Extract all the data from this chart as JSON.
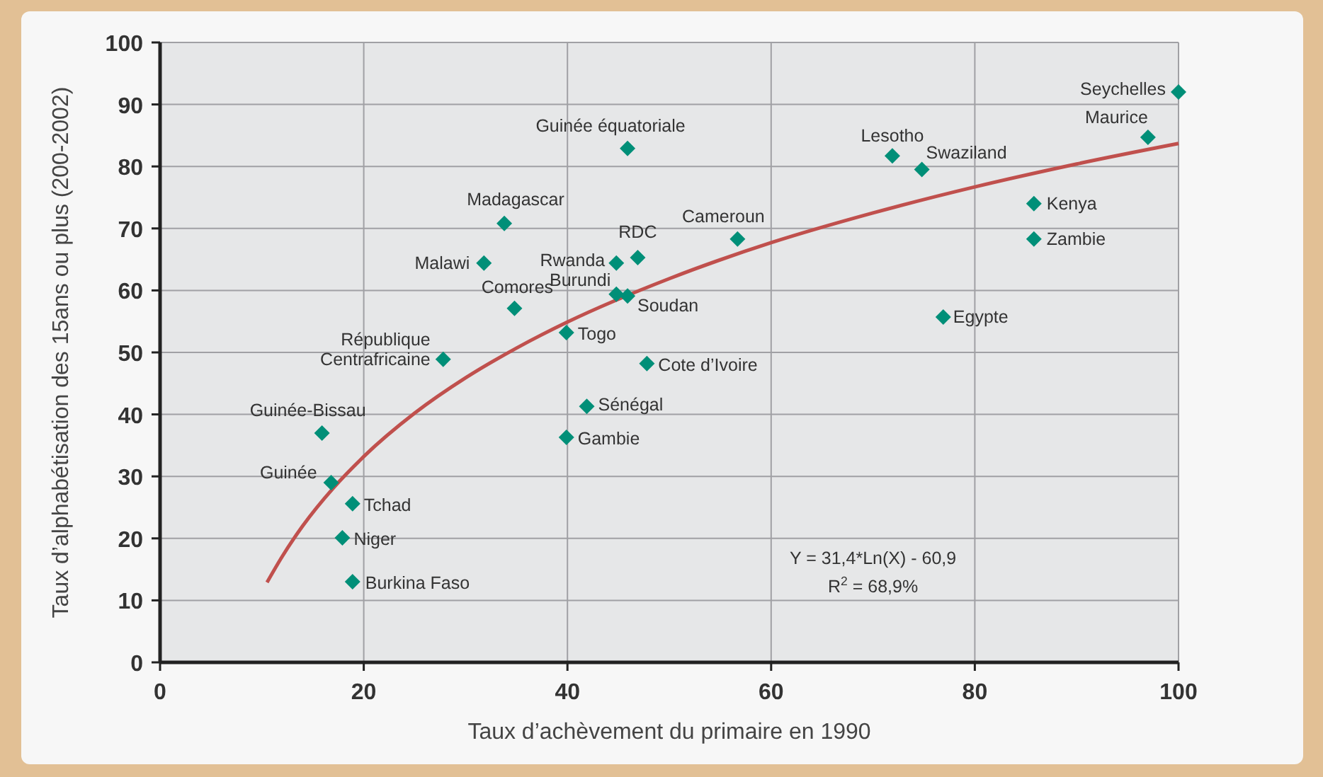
{
  "chart_data": {
    "type": "scatter",
    "xlabel": "Taux d’achèvement du primaire en 1990",
    "ylabel": "Taux d’alphabétisation des 15ans ou plus (200-2002)",
    "xlim": [
      0,
      100
    ],
    "ylim": [
      0,
      100
    ],
    "xticks": [
      0,
      20,
      40,
      60,
      80,
      100
    ],
    "yticks": [
      0,
      10,
      20,
      30,
      40,
      50,
      60,
      70,
      80,
      90,
      100
    ],
    "grid": true,
    "marker": "diamond",
    "series": [
      {
        "color": "#008f78",
        "x": [
          100,
          97,
          71.9,
          74.8,
          85.8,
          85.8,
          76.9,
          56.7,
          45.9,
          33.8,
          31.8,
          46.9,
          44.8,
          44.8,
          45.9,
          34.8,
          39.9,
          27.8,
          47.8,
          41.9,
          39.9,
          15.9,
          16.8,
          18.9,
          17.9,
          18.9
        ],
        "values": [
          92,
          84.7,
          81.7,
          79.5,
          74,
          68.3,
          55.7,
          68.3,
          82.9,
          70.8,
          64.4,
          65.3,
          64.4,
          59.4,
          59.1,
          57.1,
          53.2,
          48.9,
          48.2,
          41.3,
          36.3,
          37,
          29,
          25.6,
          20.1,
          13
        ]
      },
      {
        "type": "line",
        "color": "#c0504d",
        "marker": "none",
        "x": [
          10.5,
          12,
          14,
          17,
          20,
          25,
          30,
          35,
          40,
          50,
          60,
          70,
          80,
          90,
          100
        ],
        "values": [
          12.9,
          17.1,
          22,
          28.1,
          33.2,
          40.2,
          45.9,
          50.7,
          54.9,
          61.9,
          67.7,
          72.5,
          76.7,
          80.4,
          83.7
        ]
      }
    ],
    "annotations": [
      {
        "text": "Seychelles",
        "x": 100,
        "y": 92
      },
      {
        "text": "Maurice",
        "x": 97,
        "y": 84.7
      },
      {
        "text": "Lesotho",
        "x": 71.9,
        "y": 81.7
      },
      {
        "text": "Swaziland",
        "x": 74.8,
        "y": 79.5
      },
      {
        "text": "Kenya",
        "x": 85.8,
        "y": 74
      },
      {
        "text": "Zambie",
        "x": 85.8,
        "y": 68.3
      },
      {
        "text": "Egypte",
        "x": 76.9,
        "y": 55.7
      },
      {
        "text": "Cameroun",
        "x": 56.7,
        "y": 68.3
      },
      {
        "text": "Guinée équatoriale",
        "x": 45.9,
        "y": 82.9
      },
      {
        "text": "Madagascar",
        "x": 33.8,
        "y": 70.8
      },
      {
        "text": "Malawi",
        "x": 31.8,
        "y": 64.4
      },
      {
        "text": "RDC",
        "x": 46.9,
        "y": 65.3
      },
      {
        "text": "Rwanda",
        "x": 44.8,
        "y": 64.4
      },
      {
        "text": "Burundi",
        "x": 44.8,
        "y": 59.4
      },
      {
        "text": "Soudan",
        "x": 45.9,
        "y": 59.1
      },
      {
        "text": "Comores",
        "x": 34.8,
        "y": 57.1
      },
      {
        "text": "Togo",
        "x": 39.9,
        "y": 53.2
      },
      {
        "text": "République Centrafricaine",
        "x": 27.8,
        "y": 48.9
      },
      {
        "text": "Cote d’Ivoire",
        "x": 47.8,
        "y": 48.2
      },
      {
        "text": "Sénégal",
        "x": 41.9,
        "y": 41.3
      },
      {
        "text": "Gambie",
        "x": 39.9,
        "y": 36.3
      },
      {
        "text": "Guinée-Bissau",
        "x": 15.9,
        "y": 37
      },
      {
        "text": "Guinée",
        "x": 16.8,
        "y": 29
      },
      {
        "text": "Tchad",
        "x": 18.9,
        "y": 25.6
      },
      {
        "text": "Niger",
        "x": 17.9,
        "y": 20.1
      },
      {
        "text": "Burkina Faso",
        "x": 18.9,
        "y": 13
      },
      "Y = 31,4*Ln(X) - 60,9",
      "R$^{2}$ = 68,9%"
    ]
  }
}
